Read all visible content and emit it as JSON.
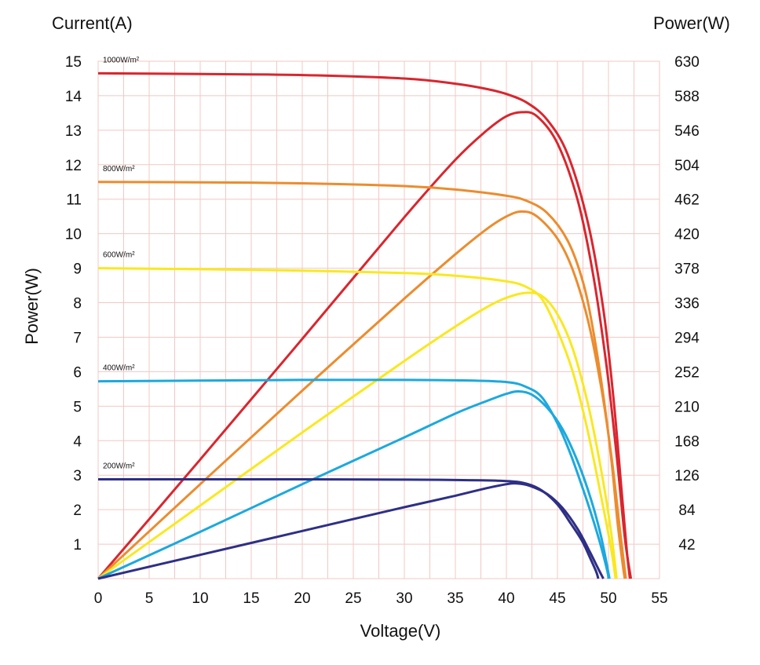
{
  "chart_data": {
    "type": "line",
    "title": "",
    "xlabel": "Voltage(V)",
    "ylabel": "Power(W)",
    "y_top_label": "Current(A)",
    "y2label": "Power(W)",
    "xlim": [
      0,
      55
    ],
    "ylim": [
      0,
      15
    ],
    "y2lim": [
      0,
      630
    ],
    "x_ticks": [
      "0",
      "5",
      "10",
      "15",
      "20",
      "25",
      "30",
      "35",
      "40",
      "45",
      "50",
      "55"
    ],
    "y_ticks": [
      "1",
      "2",
      "3",
      "4",
      "5",
      "6",
      "7",
      "8",
      "9",
      "10",
      "11",
      "12",
      "13",
      "14",
      "15"
    ],
    "y2_ticks": [
      "42",
      "84",
      "126",
      "168",
      "210",
      "252",
      "294",
      "336",
      "378",
      "420",
      "462",
      "504",
      "546",
      "588",
      "630"
    ],
    "grid": true,
    "grid_color": "#f0c8c4",
    "series": [
      {
        "name": "1000W/m²",
        "color": "#d9262e",
        "iv": [
          [
            0,
            14.65
          ],
          [
            10,
            14.63
          ],
          [
            20,
            14.6
          ],
          [
            30,
            14.5
          ],
          [
            35,
            14.35
          ],
          [
            38,
            14.2
          ],
          [
            40,
            14.05
          ],
          [
            42,
            13.8
          ],
          [
            44,
            13.3
          ],
          [
            46,
            12.3
          ],
          [
            48,
            10.3
          ],
          [
            49.5,
            7.8
          ],
          [
            50.5,
            5.2
          ],
          [
            51.3,
            2.5
          ],
          [
            51.8,
            0.8
          ],
          [
            52.1,
            0
          ]
        ],
        "pv": [
          [
            0,
            0
          ],
          [
            10,
            145
          ],
          [
            20,
            292
          ],
          [
            30,
            440
          ],
          [
            35,
            510
          ],
          [
            38,
            545
          ],
          [
            40,
            563
          ],
          [
            41.5,
            568
          ],
          [
            43,
            563
          ],
          [
            45,
            530
          ],
          [
            47,
            460
          ],
          [
            48.5,
            370
          ],
          [
            49.8,
            260
          ],
          [
            50.8,
            150
          ],
          [
            51.6,
            50
          ],
          [
            52.2,
            0
          ]
        ]
      },
      {
        "name": "800W/m²",
        "color": "#ec8c2e",
        "iv": [
          [
            0,
            11.5
          ],
          [
            10,
            11.49
          ],
          [
            20,
            11.46
          ],
          [
            30,
            11.38
          ],
          [
            35,
            11.28
          ],
          [
            40,
            11.1
          ],
          [
            42,
            10.95
          ],
          [
            44,
            10.6
          ],
          [
            46,
            9.8
          ],
          [
            47.5,
            8.6
          ],
          [
            48.5,
            7.2
          ],
          [
            49.5,
            5.3
          ],
          [
            50.3,
            3.4
          ],
          [
            50.9,
            1.6
          ],
          [
            51.4,
            0.4
          ],
          [
            51.6,
            0
          ]
        ],
        "pv": [
          [
            0,
            0
          ],
          [
            10,
            115
          ],
          [
            20,
            229
          ],
          [
            30,
            341
          ],
          [
            35,
            395
          ],
          [
            38,
            425
          ],
          [
            40,
            441
          ],
          [
            41.5,
            447
          ],
          [
            43,
            441
          ],
          [
            45,
            414
          ],
          [
            46.5,
            376
          ],
          [
            48,
            314
          ],
          [
            49.3,
            232
          ],
          [
            50.3,
            148
          ],
          [
            51.1,
            62
          ],
          [
            51.7,
            0
          ]
        ]
      },
      {
        "name": "600W/m²",
        "color": "#f9e820",
        "iv": [
          [
            0,
            9.0
          ],
          [
            10,
            8.97
          ],
          [
            20,
            8.93
          ],
          [
            30,
            8.86
          ],
          [
            35,
            8.78
          ],
          [
            40,
            8.62
          ],
          [
            42,
            8.45
          ],
          [
            43.5,
            8.1
          ],
          [
            45,
            7.2
          ],
          [
            46.5,
            6.0
          ],
          [
            47.8,
            4.5
          ],
          [
            48.8,
            3.1
          ],
          [
            49.6,
            1.9
          ],
          [
            50.3,
            0.8
          ],
          [
            50.7,
            0
          ]
        ],
        "pv": [
          [
            0,
            0
          ],
          [
            10,
            89
          ],
          [
            20,
            178
          ],
          [
            30,
            265
          ],
          [
            35,
            307
          ],
          [
            38,
            330
          ],
          [
            40,
            342
          ],
          [
            42,
            348
          ],
          [
            43.5,
            344
          ],
          [
            45,
            322
          ],
          [
            46.5,
            280
          ],
          [
            48,
            212
          ],
          [
            49.2,
            138
          ],
          [
            50.2,
            62
          ],
          [
            50.8,
            0
          ]
        ]
      },
      {
        "name": "400W/m²",
        "color": "#1ca9de",
        "iv": [
          [
            0,
            5.72
          ],
          [
            10,
            5.74
          ],
          [
            20,
            5.76
          ],
          [
            30,
            5.76
          ],
          [
            35,
            5.75
          ],
          [
            40,
            5.7
          ],
          [
            42,
            5.55
          ],
          [
            43.5,
            5.25
          ],
          [
            45,
            4.5
          ],
          [
            46.3,
            3.6
          ],
          [
            47.5,
            2.6
          ],
          [
            48.5,
            1.7
          ],
          [
            49.3,
            0.9
          ],
          [
            49.9,
            0.2
          ],
          [
            50,
            0
          ]
        ],
        "pv": [
          [
            0,
            0
          ],
          [
            10,
            57
          ],
          [
            20,
            115
          ],
          [
            30,
            172
          ],
          [
            35,
            201
          ],
          [
            38,
            216
          ],
          [
            40,
            225
          ],
          [
            41.2,
            228
          ],
          [
            42.5,
            224
          ],
          [
            44,
            208
          ],
          [
            45.5,
            182
          ],
          [
            47,
            142
          ],
          [
            48.3,
            96
          ],
          [
            49.3,
            50
          ],
          [
            50.1,
            0
          ]
        ]
      },
      {
        "name": "200W/m²",
        "color": "#2e2f86",
        "iv": [
          [
            0,
            2.88
          ],
          [
            10,
            2.88
          ],
          [
            20,
            2.88
          ],
          [
            30,
            2.87
          ],
          [
            35,
            2.86
          ],
          [
            40,
            2.83
          ],
          [
            42,
            2.75
          ],
          [
            43.5,
            2.55
          ],
          [
            45,
            2.15
          ],
          [
            46.3,
            1.6
          ],
          [
            47.4,
            1.1
          ],
          [
            48.2,
            0.6
          ],
          [
            48.8,
            0.2
          ],
          [
            49,
            0
          ]
        ],
        "pv": [
          [
            0,
            0
          ],
          [
            10,
            29
          ],
          [
            20,
            58
          ],
          [
            30,
            87
          ],
          [
            35,
            101
          ],
          [
            38,
            110
          ],
          [
            40,
            115
          ],
          [
            41,
            116
          ],
          [
            42.3,
            113
          ],
          [
            44,
            103
          ],
          [
            45.5,
            86
          ],
          [
            47,
            60
          ],
          [
            48.2,
            32
          ],
          [
            49,
            12
          ],
          [
            49.5,
            0
          ]
        ]
      }
    ]
  }
}
